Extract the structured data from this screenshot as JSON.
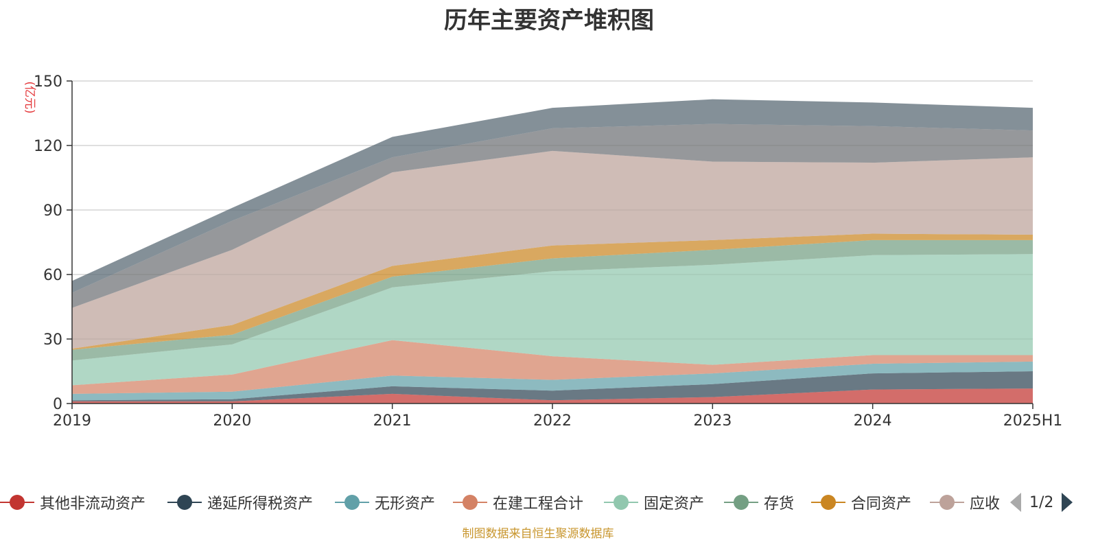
{
  "chart_data": {
    "type": "area",
    "stacked": true,
    "title": "历年主要资产堆积图",
    "ylabel": "(亿元)",
    "ylim": [
      0,
      150
    ],
    "yticks": [
      0,
      30,
      60,
      90,
      120,
      150
    ],
    "grid": true,
    "x": [
      "2019",
      "2020",
      "2021",
      "2022",
      "2023",
      "2024",
      "2025H1"
    ],
    "series": [
      {
        "name": "其他非流动资产",
        "color": "#c23531",
        "values": [
          1.0,
          1.0,
          4.5,
          1.5,
          3.0,
          6.5,
          7.0
        ]
      },
      {
        "name": "递延所得税资产",
        "color": "#2f4554",
        "values": [
          0.5,
          1.0,
          3.5,
          4.5,
          6.0,
          7.5,
          8.0
        ]
      },
      {
        "name": "无形资产",
        "color": "#61a0a8",
        "values": [
          3.0,
          3.5,
          5.0,
          5.0,
          5.0,
          4.5,
          4.5
        ]
      },
      {
        "name": "在建工程合计",
        "color": "#d48265",
        "values": [
          4.0,
          8.0,
          16.5,
          11.0,
          4.0,
          4.0,
          3.0
        ]
      },
      {
        "name": "固定资产",
        "color": "#91c7ae",
        "values": [
          11.5,
          14.0,
          24.5,
          39.5,
          46.5,
          46.5,
          47.0
        ]
      },
      {
        "name": "存货",
        "color": "#749f83",
        "values": [
          5.0,
          4.5,
          5.0,
          6.0,
          7.0,
          7.0,
          6.5
        ]
      },
      {
        "name": "合同资产",
        "color": "#ca8622",
        "values": [
          0.5,
          4.5,
          5.0,
          6.0,
          4.5,
          3.0,
          2.5
        ]
      },
      {
        "name": "应收账款",
        "color": "#bda29a",
        "values": [
          19.0,
          35.0,
          43.5,
          44.0,
          36.5,
          33.0,
          36.0
        ]
      },
      {
        "name": "",
        "color": "#6e7074",
        "values": [
          7.0,
          13.5,
          7.0,
          10.5,
          17.5,
          17.0,
          12.5
        ]
      },
      {
        "name": "",
        "color": "#546570",
        "values": [
          5.5,
          6.0,
          9.5,
          9.5,
          11.5,
          11.0,
          10.5
        ]
      }
    ]
  },
  "legend": {
    "items": [
      {
        "label": "其他非流动资产",
        "color": "#c23531"
      },
      {
        "label": "递延所得税资产",
        "color": "#2f4554"
      },
      {
        "label": "无形资产",
        "color": "#61a0a8"
      },
      {
        "label": "在建工程合计",
        "color": "#d48265"
      },
      {
        "label": "固定资产",
        "color": "#91c7ae"
      },
      {
        "label": "存货",
        "color": "#749f83"
      },
      {
        "label": "合同资产",
        "color": "#ca8622"
      },
      {
        "label": "应收",
        "color": "#bda29a"
      }
    ],
    "page_text": "1/2",
    "prev_icon": "triangle-left-icon",
    "next_icon": "triangle-right-icon"
  },
  "source_note": "制图数据来自恒生聚源数据库",
  "colors": {
    "ylabel": "#e4393c",
    "source_note": "#c8962e",
    "pager_active": "#2f4554",
    "pager_inactive": "#aaaaaa"
  }
}
